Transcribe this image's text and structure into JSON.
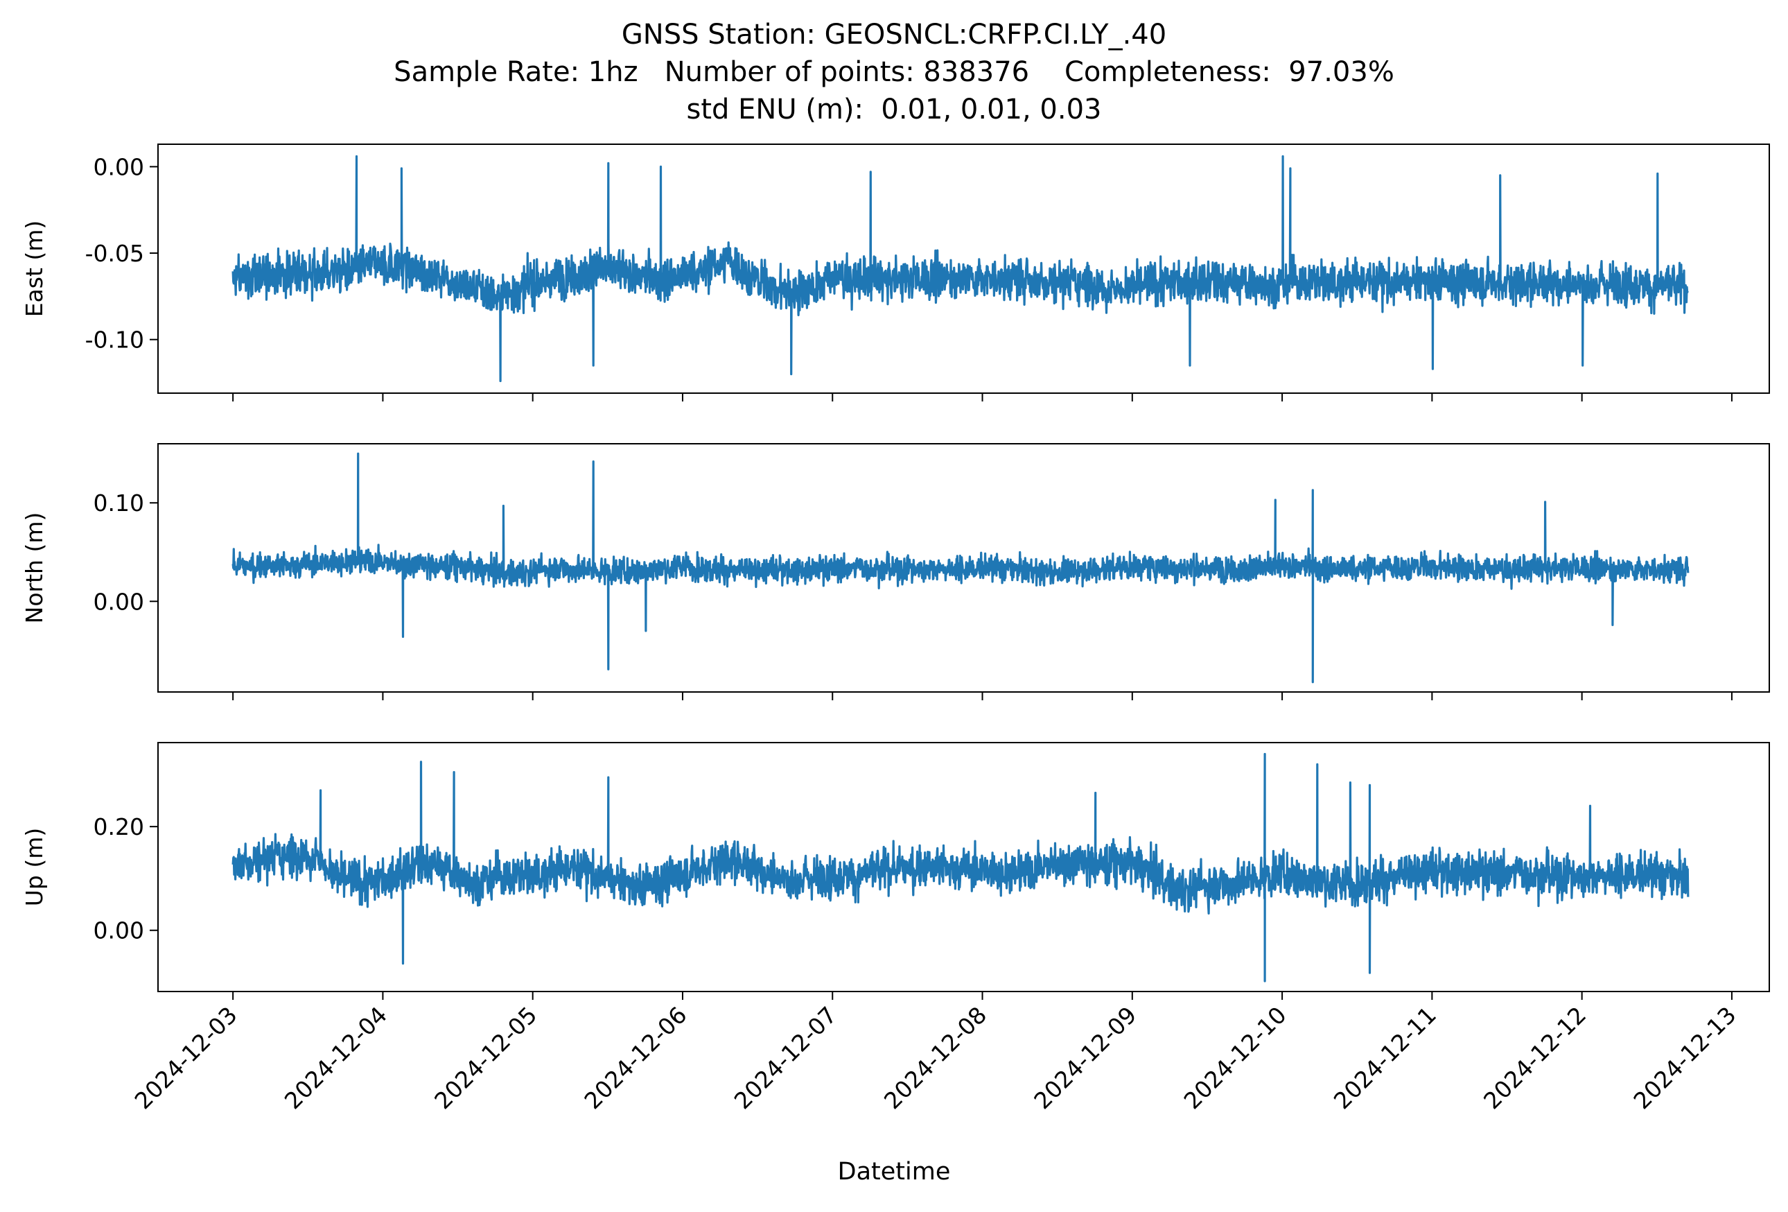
{
  "figure": {
    "title_lines": [
      "GNSS Station: GEOSNCL:CRFP.CI.LY_.40",
      "Sample Rate: 1hz   Number of points: 838376    Completeness:  97.03%",
      "std ENU (m):  0.01, 0.01, 0.03"
    ],
    "xlabel": "Datetime",
    "line_color": "#1f77b4"
  },
  "chart_data": [
    {
      "type": "line",
      "ylabel": "East (m)",
      "yticks": [
        0.0,
        -0.05,
        -0.1
      ],
      "ytick_labels": [
        "0.00",
        "-0.05",
        "-0.10"
      ],
      "ylim": [
        -0.131,
        0.013
      ],
      "xlim": [
        "2024-12-02T12:00:00",
        "2024-12-13T06:00:00"
      ],
      "series": [
        {
          "x_range": [
            "2024-12-03T00:00:00",
            "2024-12-12T17:00:00"
          ],
          "center": [
            [
              0,
              -0.065
            ],
            [
              0.3,
              -0.062
            ],
            [
              0.8,
              -0.06
            ],
            [
              1.05,
              -0.056
            ],
            [
              1.4,
              -0.064
            ],
            [
              1.75,
              -0.074
            ],
            [
              2.1,
              -0.066
            ],
            [
              2.45,
              -0.058
            ],
            [
              2.8,
              -0.066
            ],
            [
              3.15,
              -0.06
            ],
            [
              3.3,
              -0.054
            ],
            [
              3.55,
              -0.068
            ],
            [
              3.75,
              -0.073
            ],
            [
              4.0,
              -0.064
            ],
            [
              4.3,
              -0.066
            ],
            [
              4.8,
              -0.064
            ],
            [
              5.3,
              -0.065
            ],
            [
              5.6,
              -0.066
            ],
            [
              6.0,
              -0.07
            ],
            [
              6.3,
              -0.066
            ],
            [
              6.8,
              -0.068
            ],
            [
              7.3,
              -0.066
            ],
            [
              7.8,
              -0.067
            ],
            [
              8.3,
              -0.066
            ],
            [
              8.8,
              -0.067
            ],
            [
              9.3,
              -0.067
            ],
            [
              9.7,
              -0.07
            ]
          ],
          "spread": 0.012,
          "spikes": [
            [
              0.82,
              0.006
            ],
            [
              1.12,
              -0.001
            ],
            [
              2.5,
              0.002
            ],
            [
              2.85,
              0.0
            ],
            [
              6.38,
              -0.115
            ],
            [
              7.0,
              0.006
            ],
            [
              7.05,
              -0.001
            ],
            [
              3.72,
              -0.12
            ],
            [
              2.4,
              -0.115
            ],
            [
              1.78,
              -0.124
            ],
            [
              4.25,
              -0.003
            ],
            [
              8.45,
              -0.005
            ],
            [
              9.5,
              -0.004
            ],
            [
              8.0,
              -0.117
            ],
            [
              9.0,
              -0.115
            ]
          ]
        }
      ]
    },
    {
      "type": "line",
      "ylabel": "North (m)",
      "yticks": [
        0.1,
        0.0
      ],
      "ytick_labels": [
        "0.10",
        "0.00"
      ],
      "ylim": [
        -0.092,
        0.16
      ],
      "xlim": [
        "2024-12-02T12:00:00",
        "2024-12-13T06:00:00"
      ],
      "series": [
        {
          "x_range": [
            "2024-12-03T00:00:00",
            "2024-12-12T17:00:00"
          ],
          "center": [
            [
              0,
              0.035
            ],
            [
              0.5,
              0.038
            ],
            [
              0.9,
              0.042
            ],
            [
              1.1,
              0.038
            ],
            [
              1.5,
              0.036
            ],
            [
              1.8,
              0.028
            ],
            [
              2.2,
              0.034
            ],
            [
              2.6,
              0.03
            ],
            [
              3.0,
              0.036
            ],
            [
              3.5,
              0.03
            ],
            [
              4.0,
              0.034
            ],
            [
              4.5,
              0.033
            ],
            [
              5.0,
              0.034
            ],
            [
              5.5,
              0.03
            ],
            [
              6.0,
              0.036
            ],
            [
              6.5,
              0.033
            ],
            [
              7.0,
              0.035
            ],
            [
              7.5,
              0.033
            ],
            [
              8.0,
              0.036
            ],
            [
              8.5,
              0.032
            ],
            [
              9.0,
              0.034
            ],
            [
              9.7,
              0.032
            ]
          ],
          "spread": 0.013,
          "spikes": [
            [
              0.83,
              0.15
            ],
            [
              2.4,
              0.142
            ],
            [
              7.2,
              0.113
            ],
            [
              2.5,
              -0.069
            ],
            [
              7.2,
              -0.082
            ],
            [
              1.13,
              -0.036
            ],
            [
              1.8,
              0.097
            ],
            [
              6.95,
              0.103
            ],
            [
              8.75,
              0.101
            ],
            [
              9.2,
              -0.024
            ],
            [
              2.75,
              -0.03
            ]
          ]
        }
      ]
    },
    {
      "type": "line",
      "ylabel": "Up (m)",
      "yticks": [
        0.2,
        0.0
      ],
      "ytick_labels": [
        "0.20",
        "0.00"
      ],
      "ylim": [
        -0.118,
        0.362
      ],
      "xlim": [
        "2024-12-02T12:00:00",
        "2024-12-13T06:00:00"
      ],
      "series": [
        {
          "x_range": [
            "2024-12-03T00:00:00",
            "2024-12-12T17:00:00"
          ],
          "center": [
            [
              0,
              0.13
            ],
            [
              0.3,
              0.145
            ],
            [
              0.55,
              0.15
            ],
            [
              0.7,
              0.1
            ],
            [
              0.9,
              0.09
            ],
            [
              1.1,
              0.11
            ],
            [
              1.3,
              0.13
            ],
            [
              1.6,
              0.095
            ],
            [
              2.0,
              0.11
            ],
            [
              2.3,
              0.12
            ],
            [
              2.7,
              0.08
            ],
            [
              3.0,
              0.11
            ],
            [
              3.3,
              0.14
            ],
            [
              3.7,
              0.1
            ],
            [
              4.2,
              0.11
            ],
            [
              4.7,
              0.125
            ],
            [
              5.2,
              0.11
            ],
            [
              5.5,
              0.13
            ],
            [
              6.0,
              0.13
            ],
            [
              6.3,
              0.08
            ],
            [
              6.6,
              0.09
            ],
            [
              7.0,
              0.11
            ],
            [
              7.4,
              0.09
            ],
            [
              7.8,
              0.105
            ],
            [
              8.2,
              0.115
            ],
            [
              8.6,
              0.11
            ],
            [
              9.0,
              0.105
            ],
            [
              9.3,
              0.11
            ],
            [
              9.7,
              0.1
            ]
          ],
          "spread": 0.04,
          "spikes": [
            [
              1.25,
              0.325
            ],
            [
              1.47,
              0.305
            ],
            [
              2.5,
              0.295
            ],
            [
              6.88,
              0.34
            ],
            [
              7.23,
              0.32
            ],
            [
              7.45,
              0.285
            ],
            [
              7.58,
              0.28
            ],
            [
              6.88,
              -0.098
            ],
            [
              7.58,
              -0.082
            ],
            [
              1.13,
              -0.064
            ],
            [
              0.58,
              0.27
            ],
            [
              5.75,
              0.265
            ],
            [
              9.05,
              0.24
            ]
          ]
        }
      ]
    }
  ],
  "x_axis": {
    "tick_labels": [
      "2024-12-03",
      "2024-12-04",
      "2024-12-05",
      "2024-12-06",
      "2024-12-07",
      "2024-12-08",
      "2024-12-09",
      "2024-12-10",
      "2024-12-11",
      "2024-12-12",
      "2024-12-13"
    ]
  }
}
